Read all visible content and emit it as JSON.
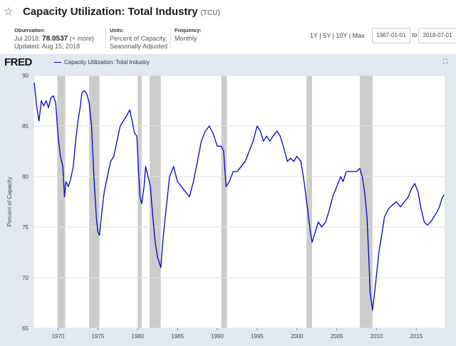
{
  "header": {
    "star_icon": "star-outline-icon",
    "title": "Capacity Utilization: Total Industry",
    "series_id": "(TCU)"
  },
  "observation": {
    "label": "Observation:",
    "period": "Jul 2018:",
    "value": "78.0537",
    "more": "(+ more)",
    "updated": "Updated: Aug 15, 2018"
  },
  "units": {
    "label": "Units:",
    "line1": "Percent of Capacity,",
    "line2": "Seasonally Adjusted"
  },
  "frequency": {
    "label": "Frequency:",
    "value": "Monthly"
  },
  "ranges": [
    "1Y",
    "5Y",
    "10Y",
    "Max"
  ],
  "date_start": "1967-01-01",
  "date_to": "to",
  "date_end": "2018-07-01",
  "chart_header": {
    "logo": "FRED",
    "legend_label": "Capacity Utilization: Total Industry",
    "expand_icon": "expand-icon"
  },
  "colors": {
    "line": "#0000cc",
    "recession": "#cccccc",
    "chart_bg": "#e1e9f0"
  },
  "chart_data": {
    "type": "line",
    "ylabel": "Percent of Capacity",
    "ylim": [
      65,
      90
    ],
    "xlim": [
      1967.0,
      2018.55
    ],
    "y_ticks": [
      65,
      70,
      75,
      80,
      85,
      90
    ],
    "x_ticks": [
      1970,
      1975,
      1980,
      1985,
      1990,
      1995,
      2000,
      2005,
      2010,
      2015
    ],
    "grid": "horizontal",
    "recessions": [
      [
        1969.9,
        1970.9
      ],
      [
        1973.9,
        1975.2
      ],
      [
        1980.0,
        1980.5
      ],
      [
        1981.5,
        1982.9
      ],
      [
        1990.5,
        1991.2
      ],
      [
        2001.2,
        2001.9
      ],
      [
        2007.9,
        2009.5
      ]
    ],
    "series": [
      {
        "x": [
          1967.0,
          1967.3,
          1967.6,
          1967.9,
          1968.2,
          1968.5,
          1968.8,
          1969.1,
          1969.4,
          1969.7,
          1970.0,
          1970.3,
          1970.6,
          1970.8,
          1971.0,
          1971.3,
          1971.6,
          1971.9,
          1972.2,
          1972.5,
          1972.8,
          1973.0,
          1973.3,
          1973.6,
          1973.9,
          1974.2,
          1974.5,
          1974.8,
          1975.0,
          1975.2,
          1975.5,
          1975.8,
          1976.2,
          1976.6,
          1977.0,
          1977.4,
          1977.8,
          1978.2,
          1978.6,
          1979.0,
          1979.3,
          1979.6,
          1979.9,
          1980.1,
          1980.3,
          1980.5,
          1980.8,
          1981.0,
          1981.3,
          1981.6,
          1981.9,
          1982.2,
          1982.5,
          1982.9,
          1983.2,
          1983.6,
          1984.0,
          1984.5,
          1985.0,
          1985.5,
          1986.0,
          1986.5,
          1987.0,
          1987.5,
          1988.0,
          1988.5,
          1989.0,
          1989.5,
          1990.0,
          1990.5,
          1990.8,
          1991.1,
          1991.5,
          1992.0,
          1992.5,
          1993.0,
          1993.5,
          1994.0,
          1994.5,
          1995.0,
          1995.4,
          1995.8,
          1996.2,
          1996.6,
          1997.0,
          1997.5,
          1997.9,
          1998.3,
          1998.8,
          1999.2,
          1999.6,
          2000.0,
          2000.5,
          2000.9,
          2001.3,
          2001.7,
          2001.9,
          2002.3,
          2002.7,
          2003.1,
          2003.6,
          2004.0,
          2004.5,
          2005.0,
          2005.5,
          2005.8,
          2006.2,
          2006.7,
          2007.1,
          2007.5,
          2007.9,
          2008.2,
          2008.5,
          2008.8,
          2009.0,
          2009.2,
          2009.5,
          2009.9,
          2010.3,
          2010.7,
          2011.0,
          2011.5,
          2012.0,
          2012.5,
          2013.0,
          2013.5,
          2014.0,
          2014.4,
          2014.8,
          2015.2,
          2015.6,
          2016.0,
          2016.4,
          2016.8,
          2017.2,
          2017.6,
          2017.9,
          2018.2,
          2018.5
        ],
        "values": [
          89.3,
          87.0,
          85.5,
          87.5,
          87.0,
          87.5,
          86.8,
          87.8,
          88.0,
          87.3,
          84.0,
          82.0,
          81.0,
          78.0,
          79.5,
          79.0,
          79.8,
          81.0,
          83.5,
          85.5,
          87.0,
          88.3,
          88.5,
          88.2,
          87.3,
          85.0,
          80.0,
          76.0,
          74.5,
          74.2,
          76.5,
          78.5,
          80.0,
          81.5,
          82.0,
          83.5,
          85.0,
          85.5,
          86.0,
          86.6,
          85.5,
          84.3,
          84.0,
          80.5,
          78.0,
          77.3,
          79.0,
          81.0,
          80.0,
          79.0,
          76.0,
          73.5,
          72.0,
          71.0,
          74.0,
          77.0,
          80.0,
          81.0,
          79.5,
          79.0,
          78.5,
          78.0,
          79.5,
          81.5,
          83.5,
          84.5,
          85.0,
          84.2,
          83.0,
          83.0,
          82.5,
          79.0,
          79.5,
          80.5,
          80.5,
          81.0,
          81.5,
          82.5,
          83.5,
          85.0,
          84.5,
          83.5,
          84.0,
          83.5,
          84.0,
          84.5,
          84.0,
          83.0,
          81.5,
          81.8,
          81.5,
          82.0,
          81.5,
          79.5,
          77.0,
          74.5,
          73.5,
          74.5,
          75.5,
          75.0,
          75.5,
          76.5,
          78.0,
          79.0,
          80.0,
          79.5,
          80.5,
          80.5,
          80.5,
          80.5,
          80.8,
          80.0,
          78.5,
          76.0,
          72.5,
          68.5,
          66.8,
          69.5,
          72.5,
          74.5,
          76.0,
          76.8,
          77.2,
          77.5,
          77.0,
          77.5,
          78.0,
          78.8,
          79.3,
          78.5,
          76.8,
          75.5,
          75.2,
          75.5,
          76.0,
          76.5,
          77.0,
          77.8,
          78.2
        ]
      }
    ]
  }
}
